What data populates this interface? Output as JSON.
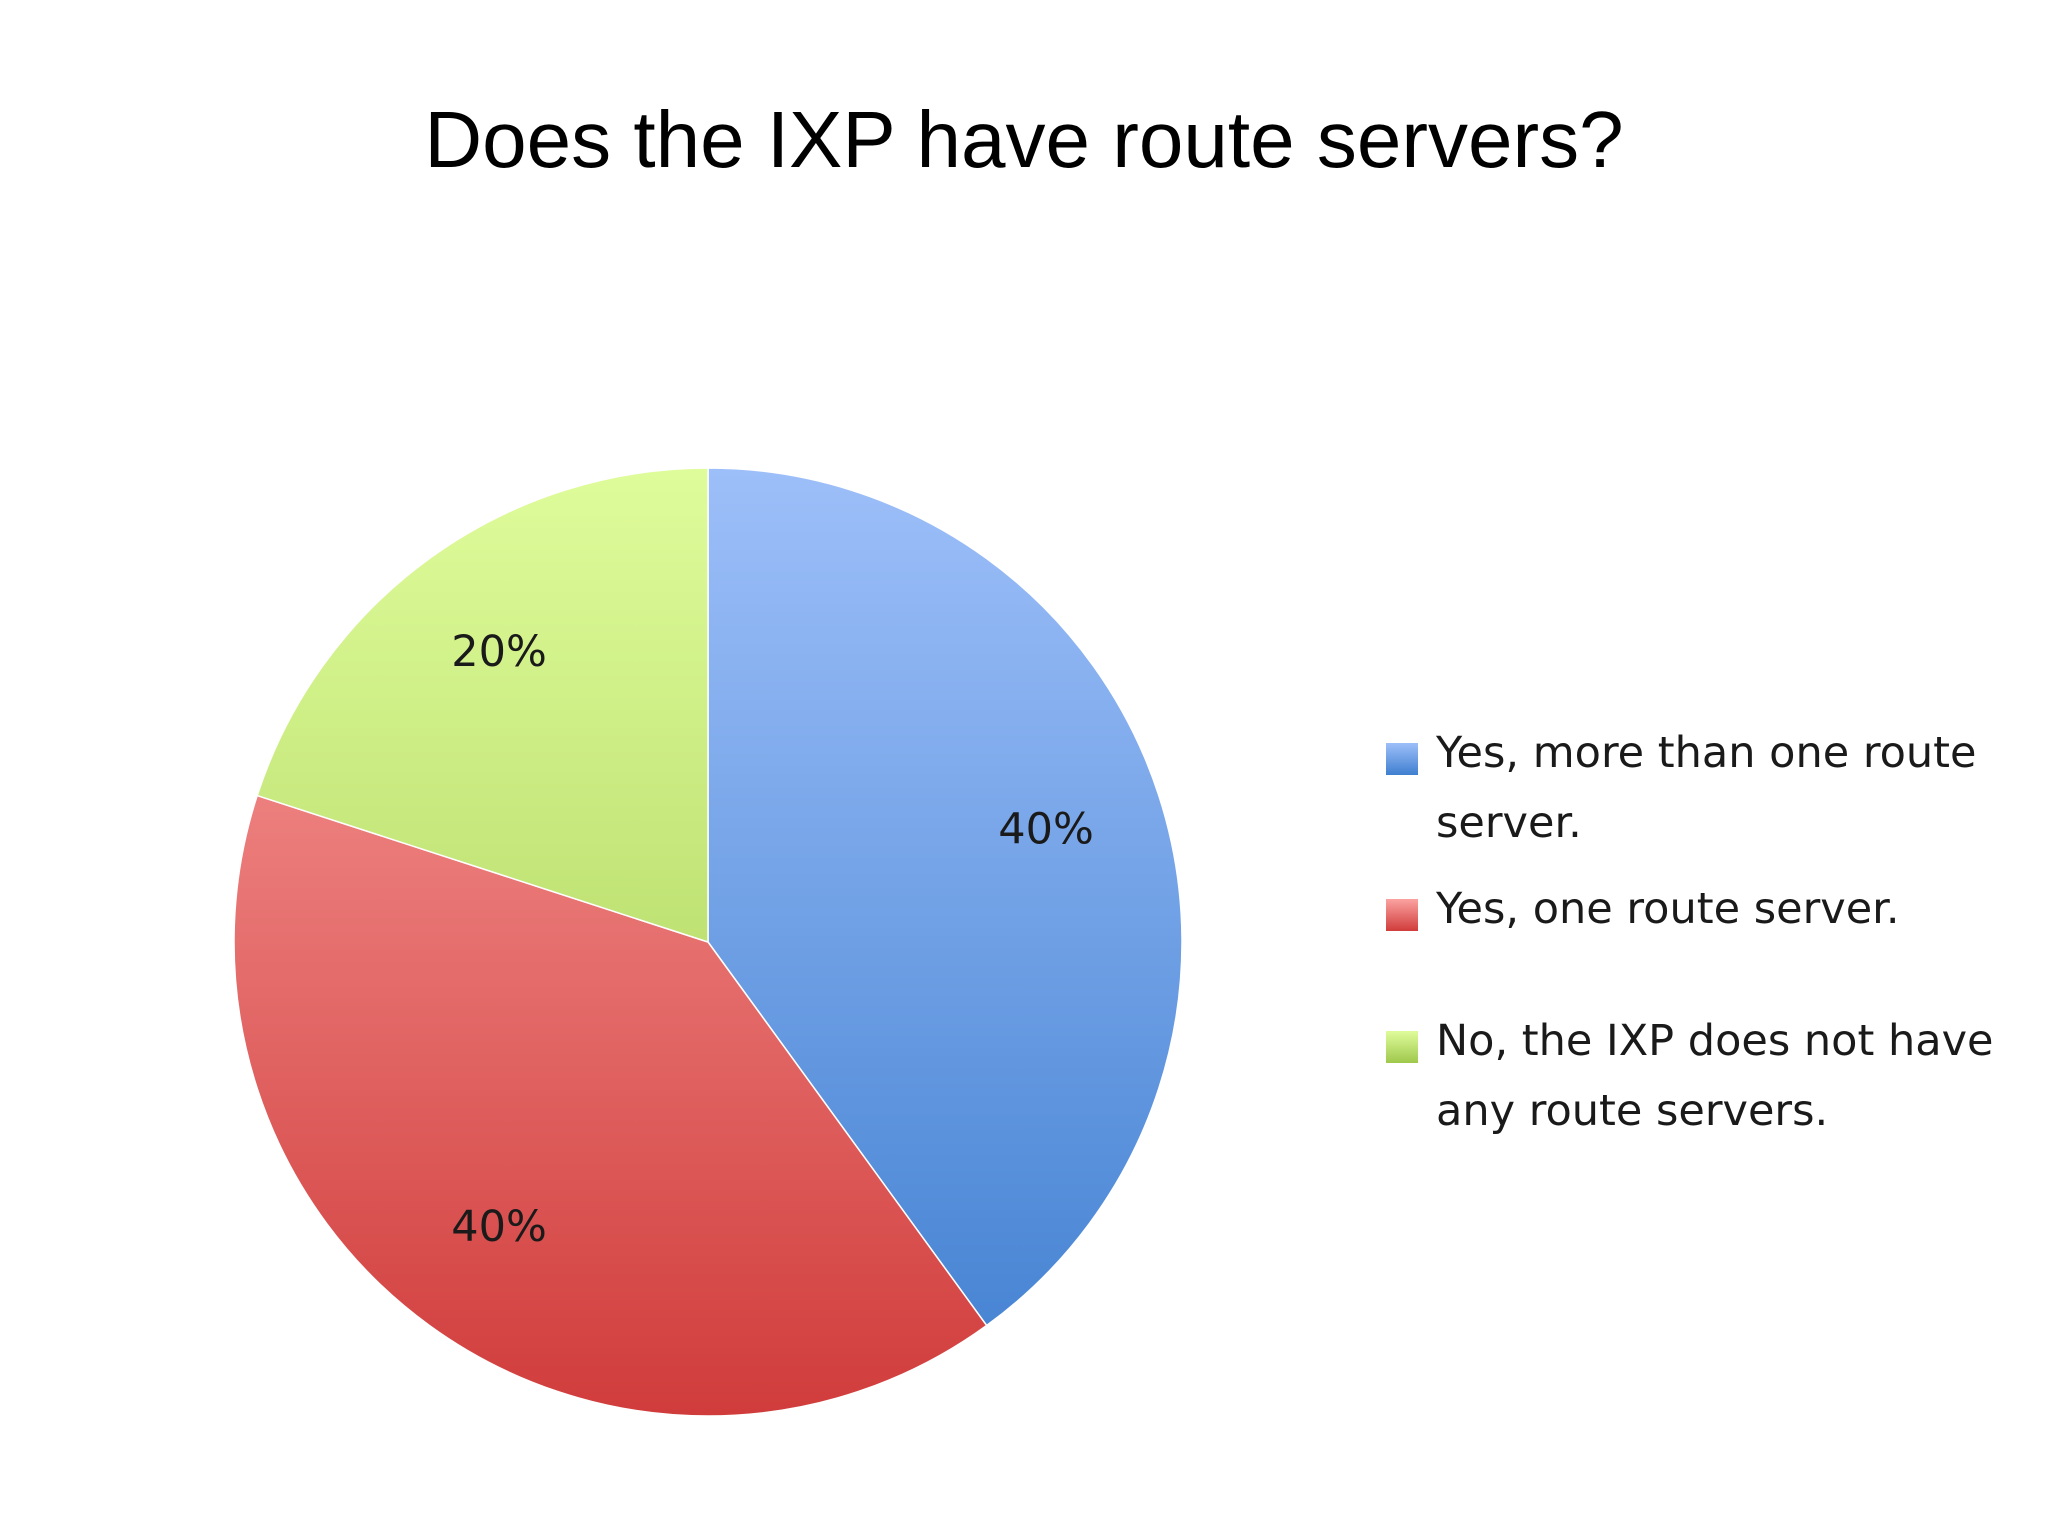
{
  "chart_data": {
    "type": "pie",
    "title": "Does the IXP have route servers?",
    "categories": [
      "Yes, more than one route server.",
      "Yes, one route server.",
      "No, the IXP does not have any route servers."
    ],
    "values": [
      40,
      40,
      20
    ],
    "data_labels": [
      "40%",
      "40%",
      "20%"
    ],
    "legend_position": "right",
    "colors": [
      {
        "light": "#9dbff9",
        "dark": "#3f7fd0"
      },
      {
        "light": "#fba3a1",
        "dark": "#d03c3b"
      },
      {
        "light": "#dffc9b",
        "dark": "#9fc84c"
      }
    ]
  }
}
